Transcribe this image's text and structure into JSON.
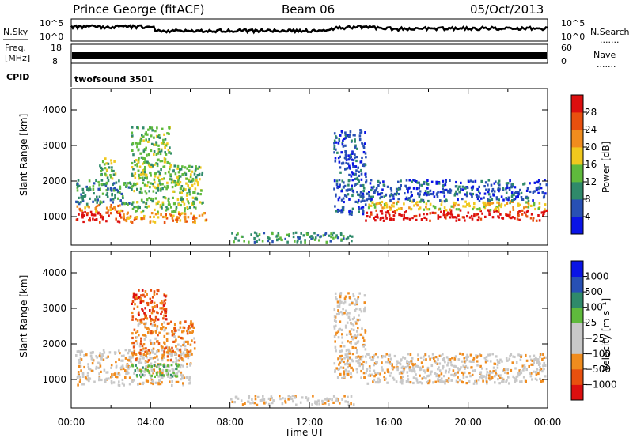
{
  "header": {
    "station": "Prince George (fitACF)",
    "beam": "Beam 06",
    "date": "05/Oct/2013"
  },
  "strips": {
    "nsky_label": "N.Sky",
    "nsearch_label": "N.Search",
    "noise_ticks_left": [
      "10^5",
      "10^0"
    ],
    "noise_ticks_right": [
      "10^5",
      "10^0"
    ],
    "freq_label_1": "Freq.",
    "freq_label_2": "[MHz]",
    "freq_ticks": [
      "18",
      "8"
    ],
    "nave_label": "Nave",
    "nave_ticks": [
      "60",
      "0"
    ],
    "cpid_label": "CPID",
    "cpid_value": "twofsound 3501",
    "dots": "......."
  },
  "colors": {
    "power": [
      "#0a14e6",
      "#2850b4",
      "#2f8a6a",
      "#5fba3c",
      "#f0c81e",
      "#f08c1e",
      "#e8500f",
      "#dc0f0f"
    ],
    "velocity": [
      "#dc0f0f",
      "#e8500f",
      "#f08c1e",
      "#c8c8c8",
      "#c8c8c8",
      "#5fba3c",
      "#2f8a6a",
      "#2850b4",
      "#0a14e6"
    ]
  },
  "chart_data": [
    {
      "type": "heatmap",
      "name": "Power panel",
      "x_range_hours": [
        0,
        24
      ],
      "ylabel": "Slant Range [km]",
      "ylim": [
        200,
        4600
      ],
      "y_ticks": [
        "4000",
        "3000",
        "2000",
        "1000"
      ],
      "x_ticks": [
        "00:00",
        "04:00",
        "08:00",
        "12:00",
        "16:00",
        "20:00",
        "00:00"
      ],
      "colorbar": {
        "label": "Power [dB]",
        "ticks": [
          "28",
          "24",
          "20",
          "16",
          "12",
          "8",
          "4"
        ],
        "range": [
          0,
          30
        ]
      },
      "regions": [
        {
          "t": [
            0.2,
            2.6
          ],
          "r": [
            800,
            1100
          ],
          "level": 7
        },
        {
          "t": [
            0.2,
            2.6
          ],
          "r": [
            1100,
            1300
          ],
          "level": 5
        },
        {
          "t": [
            0.2,
            3.0
          ],
          "r": [
            1300,
            2000
          ],
          "level": 2
        },
        {
          "t": [
            2.6,
            6.8
          ],
          "r": [
            800,
            1100
          ],
          "level": 5
        },
        {
          "t": [
            3.0,
            6.6
          ],
          "r": [
            1100,
            2400
          ],
          "level": 3
        },
        {
          "t": [
            3.0,
            5.0
          ],
          "r": [
            2400,
            3500
          ],
          "level": 3
        },
        {
          "t": [
            1.4,
            2.2
          ],
          "r": [
            2000,
            2600
          ],
          "level": 3
        },
        {
          "t": [
            8.0,
            14.2
          ],
          "r": [
            250,
            520
          ],
          "level": 2
        },
        {
          "t": [
            13.2,
            14.8
          ],
          "r": [
            1000,
            3400
          ],
          "level": 1
        },
        {
          "t": [
            14.8,
            23.9
          ],
          "r": [
            850,
            1150
          ],
          "level": 7
        },
        {
          "t": [
            14.8,
            23.9
          ],
          "r": [
            1150,
            1400
          ],
          "level": 4
        },
        {
          "t": [
            14.8,
            23.9
          ],
          "r": [
            1400,
            2000
          ],
          "level": 1
        }
      ]
    },
    {
      "type": "heatmap",
      "name": "Velocity panel",
      "x_range_hours": [
        0,
        24
      ],
      "xlabel": "Time UT",
      "ylabel": "Slant Range [km]",
      "ylim": [
        200,
        4600
      ],
      "y_ticks": [
        "4000",
        "3000",
        "2000",
        "1000"
      ],
      "x_ticks": [
        "00:00",
        "04:00",
        "08:00",
        "12:00",
        "16:00",
        "20:00",
        "00:00"
      ],
      "colorbar": {
        "label": "Velocity [m s⁻¹]",
        "ticks": [
          "1000",
          "500",
          "100",
          "25",
          "−25",
          "−100",
          "−500",
          "−1000"
        ]
      },
      "regions": [
        {
          "t": [
            0.2,
            6.0
          ],
          "r": [
            800,
            1800
          ],
          "level": 3
        },
        {
          "t": [
            3.0,
            5.4
          ],
          "r": [
            1000,
            1400
          ],
          "level": 5
        },
        {
          "t": [
            3.0,
            6.2
          ],
          "r": [
            1500,
            2600
          ],
          "level": 2
        },
        {
          "t": [
            3.0,
            4.8
          ],
          "r": [
            2600,
            3500
          ],
          "level": 1
        },
        {
          "t": [
            8.0,
            14.2
          ],
          "r": [
            250,
            520
          ],
          "level": 3
        },
        {
          "t": [
            13.2,
            14.8
          ],
          "r": [
            1000,
            3400
          ],
          "level": 3
        },
        {
          "t": [
            14.8,
            23.9
          ],
          "r": [
            850,
            1700
          ],
          "level": 3
        }
      ]
    }
  ],
  "xlabel": "Time UT"
}
